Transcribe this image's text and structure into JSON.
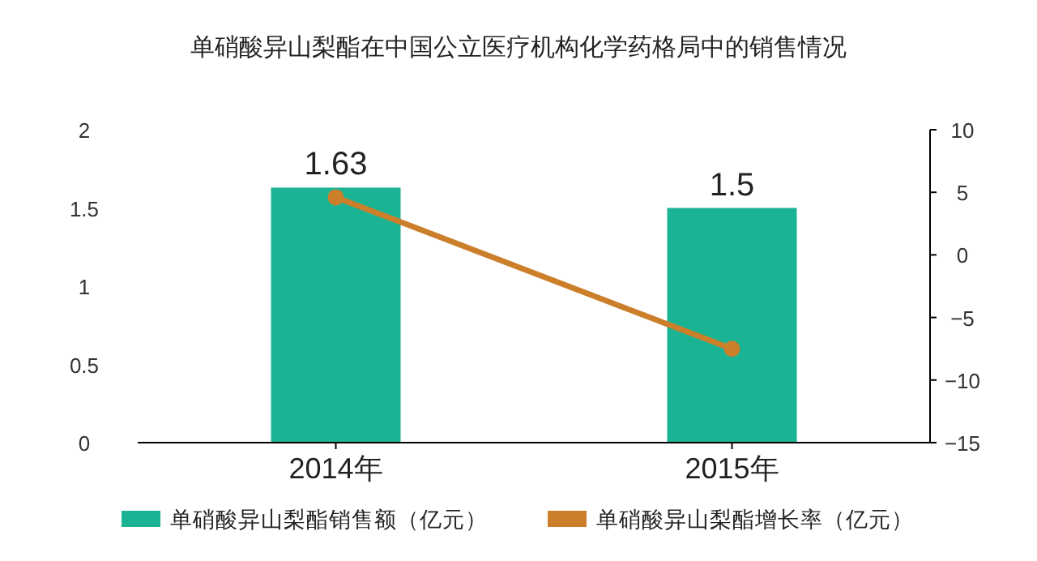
{
  "chart_data": {
    "type": "bar",
    "title": "单硝酸异山梨酯在中国公立医疗机构化学药格局中的销售情况",
    "categories": [
      "2014年",
      "2015年"
    ],
    "series": [
      {
        "name": "单硝酸异山梨酯销售额（亿元）",
        "color": "#1ab394",
        "values": [
          1.63,
          1.5
        ],
        "value_labels": [
          "1.63",
          "1.5"
        ]
      },
      {
        "name": "单硝酸异山梨酯增长率（亿元）",
        "type": "line",
        "axis": "y2",
        "color": "#cc7f2a",
        "marker": "circle",
        "values": [
          4.6,
          -7.5
        ]
      }
    ],
    "ylim": [
      0,
      2
    ],
    "yticks": [
      0,
      0.5,
      1,
      1.5,
      2
    ],
    "y2lim": [
      -15,
      10
    ],
    "y2ticks": [
      -15,
      -10,
      -5,
      0,
      5,
      10
    ],
    "grid": false,
    "legend": "bottom"
  }
}
